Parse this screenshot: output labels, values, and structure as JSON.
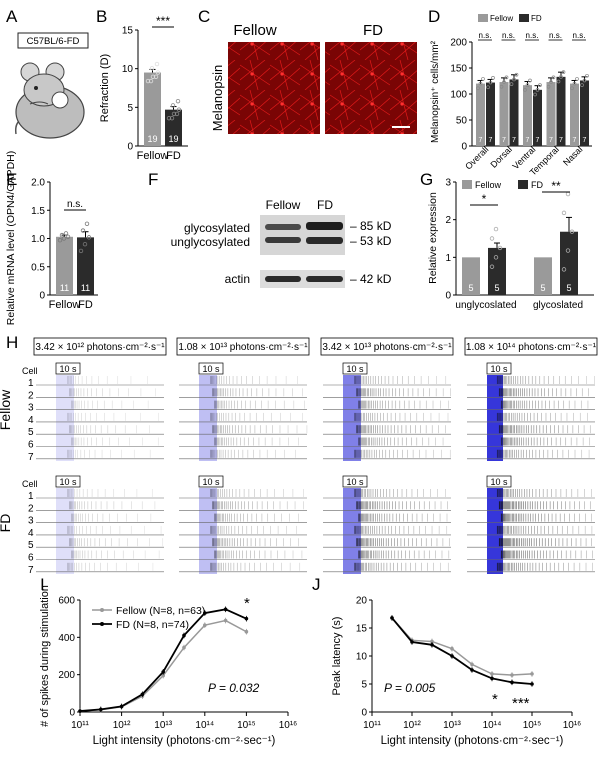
{
  "colors": {
    "fellow_bar": "#9a9a9a",
    "fd_bar": "#2b2b2b",
    "fellow_line": "#999999",
    "fd_line": "#000000",
    "melanopsin": "#c80a0a",
    "stim_blue": "#2b2bd8"
  },
  "panel_letters": {
    "A": "A",
    "B": "B",
    "C": "C",
    "D": "D",
    "E": "E",
    "F": "F",
    "G": "G",
    "H": "H",
    "I": "I",
    "J": "J"
  },
  "panel_a": {
    "strain_label": "C57BL/6-FD"
  },
  "chart_data": [
    {
      "panel": "B",
      "type": "bar",
      "categories": [
        "Fellow",
        "FD"
      ],
      "values": [
        9.5,
        4.7
      ],
      "errors": [
        0.4,
        0.4
      ],
      "n_labels": [
        "19",
        "19"
      ],
      "ylabel": "Refraction (D)",
      "ylim": [
        0,
        15
      ],
      "yticks": [
        "0",
        "5",
        "10",
        "15"
      ],
      "significance": "***"
    },
    {
      "panel": "D",
      "type": "bar",
      "categories": [
        "Overall",
        "Dorsal",
        "Ventral",
        "Temporal",
        "Nasal"
      ],
      "series": [
        {
          "name": "Fellow",
          "values": [
            120,
            123,
            117,
            123,
            120
          ],
          "errors": [
            6,
            8,
            7,
            8,
            6
          ]
        },
        {
          "name": "FD",
          "values": [
            122,
            128,
            108,
            133,
            126
          ],
          "errors": [
            6,
            9,
            8,
            9,
            7
          ]
        }
      ],
      "n_labels": [
        "7",
        "7"
      ],
      "significance": [
        "n.s.",
        "n.s.",
        "n.s.",
        "n.s.",
        "n.s."
      ],
      "ylabel": "Melanopsin⁺ cells/mm²",
      "ylim": [
        0,
        200
      ],
      "yticks": [
        "0",
        "50",
        "100",
        "150",
        "200"
      ],
      "legend": [
        "Fellow",
        "FD"
      ]
    },
    {
      "panel": "E",
      "type": "bar",
      "categories": [
        "Fellow",
        "FD"
      ],
      "values": [
        1.03,
        1.02
      ],
      "errors": [
        0.03,
        0.1
      ],
      "n_labels": [
        "11",
        "11"
      ],
      "ylabel": "Relative mRNA level (OPN4/GAPDH)",
      "ylim": [
        0,
        2.0
      ],
      "yticks": [
        "0",
        "0.5",
        "1.0",
        "1.5",
        "2.0"
      ],
      "significance": "n.s."
    },
    {
      "panel": "G",
      "type": "bar",
      "categories": [
        "unglycoslated",
        "glycoslated"
      ],
      "series": [
        {
          "name": "Fellow",
          "values": [
            1.0,
            1.0
          ],
          "errors": [
            0,
            0
          ]
        },
        {
          "name": "FD",
          "values": [
            1.25,
            1.68
          ],
          "errors": [
            0.13,
            0.38
          ]
        }
      ],
      "n_labels": [
        "5",
        "5",
        "5",
        "5"
      ],
      "significance": [
        "*",
        "**"
      ],
      "ylabel": "Relative expression",
      "ylim": [
        0,
        3
      ],
      "yticks": [
        "0",
        "1",
        "2",
        "3"
      ],
      "legend": [
        "Fellow",
        "FD"
      ]
    },
    {
      "panel": "I",
      "type": "line",
      "x": [
        100000000000,
        316000000000,
        1000000000000,
        3160000000000,
        10000000000000,
        31600000000000,
        100000000000000,
        316000000000000,
        1000000000000000
      ],
      "series": [
        {
          "name": "Fellow (N=8, n=63)",
          "values": [
            5,
            12,
            28,
            85,
            195,
            345,
            465,
            490,
            430
          ]
        },
        {
          "name": "FD (N=8, n=74)",
          "values": [
            5,
            14,
            30,
            95,
            215,
            410,
            530,
            550,
            500
          ]
        }
      ],
      "xlabel": "Light intensity (photons·cm⁻²·sec⁻¹)",
      "ylabel": "# of spikes during stimulation",
      "ylim": [
        0,
        600
      ],
      "yticks": [
        "0",
        "200",
        "400",
        "600"
      ],
      "xscale": "log",
      "xlim": [
        100000000000,
        10000000000000000
      ],
      "annotation": "P = 0.032",
      "sig_mark": "*",
      "legend_placement": "top-left"
    },
    {
      "panel": "J",
      "type": "line",
      "x": [
        316000000000,
        1000000000000,
        3160000000000,
        10000000000000,
        31600000000000,
        100000000000000,
        316000000000000,
        1000000000000000
      ],
      "series": [
        {
          "name": "Fellow",
          "values": [
            16.8,
            12.8,
            12.6,
            11.3,
            8.5,
            6.8,
            6.6,
            6.8
          ]
        },
        {
          "name": "FD",
          "values": [
            16.8,
            12.5,
            12.0,
            10.0,
            7.5,
            6.0,
            5.3,
            5.0
          ]
        }
      ],
      "ylabel": "Peak latency (s)",
      "xlabel": "Light intensity (photons·cm⁻²·sec⁻¹)",
      "ylim": [
        0,
        20
      ],
      "yticks": [
        "0",
        "5",
        "10",
        "15",
        "20"
      ],
      "xscale": "log",
      "xlim": [
        100000000000,
        10000000000000000
      ],
      "annotation": "P = 0.005",
      "sig_marks": [
        "*",
        "***"
      ]
    }
  ],
  "log_ticks": [
    "10¹¹",
    "10¹²",
    "10¹³",
    "10¹⁴",
    "10¹⁵",
    "10¹⁶"
  ],
  "panel_c": {
    "fellow": "Fellow",
    "fd": "FD",
    "side_label": "Melanopsin"
  },
  "panel_f": {
    "fellow": "Fellow",
    "fd": "FD",
    "glyco": "glycosylated",
    "unglyco": "unglycosylated",
    "actin": "actin",
    "kd85": "– 85 kD",
    "kd53": "– 53 kD",
    "kd42": "– 42 kD"
  },
  "panel_h": {
    "intensities": [
      "3.42 × 10¹² photons·cm⁻²·s⁻¹",
      "1.08 × 10¹³ photons·cm⁻²·s⁻¹",
      "3.42 × 10¹³ photons·cm⁻²·s⁻¹",
      "1.08 × 10¹⁴ photons·cm⁻²·s⁻¹"
    ],
    "scale_label": "10 s",
    "cell_label": "Cell",
    "cells": [
      "1",
      "2",
      "3",
      "4",
      "5",
      "6",
      "7"
    ],
    "group_fellow": "Fellow",
    "group_fd": "FD"
  }
}
